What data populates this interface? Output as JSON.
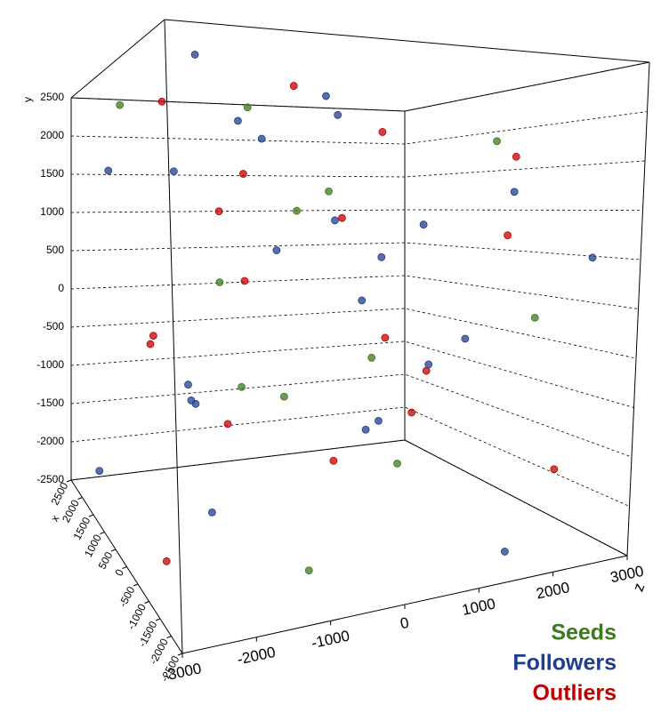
{
  "chart_data": {
    "type": "scatter3d",
    "x_label": "x",
    "y_label": "y",
    "z_label": "z",
    "xlim": [
      -2500,
      2500
    ],
    "ylim": [
      -2500,
      2500
    ],
    "zlim": [
      -3000,
      3000
    ],
    "xticks": [
      -2500,
      -2000,
      -1500,
      -1000,
      -500,
      0,
      500,
      1000,
      1500,
      2000,
      2500
    ],
    "yticks": [
      -2500,
      -2000,
      -1500,
      -1000,
      -500,
      0,
      500,
      1000,
      1500,
      2000,
      2500
    ],
    "zticks": [
      -3000,
      -2000,
      -1000,
      0,
      1000,
      2000,
      3000
    ],
    "grid": true,
    "legend": "bottom-right",
    "series": [
      {
        "name": "Seeds",
        "color": "#3b7a1e",
        "x": [
          -1600,
          -200,
          900,
          2100,
          -2200,
          1300,
          400,
          -900,
          1800,
          -400,
          2300,
          -1300
        ],
        "y": [
          1700,
          -800,
          2200,
          -1100,
          400,
          1000,
          -2000,
          -200,
          2300,
          1200,
          -1600,
          -2400
        ],
        "z": [
          1600,
          -1300,
          -700,
          2100,
          -2300,
          300,
          1400,
          2600,
          -2400,
          -100,
          700,
          -800
        ]
      },
      {
        "name": "Followers",
        "color": "#1f3d8c",
        "x": [
          -2000,
          -1500,
          -1000,
          -500,
          0,
          500,
          1000,
          1500,
          2000,
          2300,
          -2200,
          1800,
          -800,
          600,
          2200,
          -1800,
          1200,
          -300,
          2400,
          0,
          -2400,
          900,
          1600,
          -1200
        ],
        "y": [
          2300,
          1800,
          1200,
          600,
          0,
          -600,
          -1200,
          -1800,
          -2200,
          2000,
          -2300,
          1500,
          900,
          -900,
          -1500,
          500,
          2200,
          -2000,
          300,
          1400,
          -400,
          -1700,
          800,
          2100
        ],
        "z": [
          -2500,
          -1800,
          2200,
          -900,
          600,
          2500,
          -1500,
          1800,
          -2700,
          300,
          1500,
          -2600,
          -200,
          2000,
          -1000,
          2800,
          900,
          -1800,
          2500,
          -2200,
          -2800,
          1200,
          2600,
          -500
        ]
      },
      {
        "name": "Outliers",
        "color": "#c00000",
        "x": [
          -1900,
          -700,
          400,
          1700,
          2300,
          -2300,
          1100,
          -100,
          2000,
          -1400,
          800,
          -2100,
          1500,
          -600,
          2400,
          200,
          -1000,
          1900
        ],
        "y": [
          2100,
          1600,
          -300,
          900,
          -1900,
          1300,
          -2100,
          700,
          2400,
          -1000,
          200,
          -1600,
          -700,
          -2300,
          1000,
          1900,
          -200,
          -1300
        ],
        "z": [
          -1200,
          2400,
          -2400,
          1300,
          -300,
          -2000,
          800,
          2700,
          -1600,
          600,
          -800,
          2200,
          1900,
          -2600,
          -400,
          1000,
          -2900,
          2900
        ]
      }
    ]
  }
}
